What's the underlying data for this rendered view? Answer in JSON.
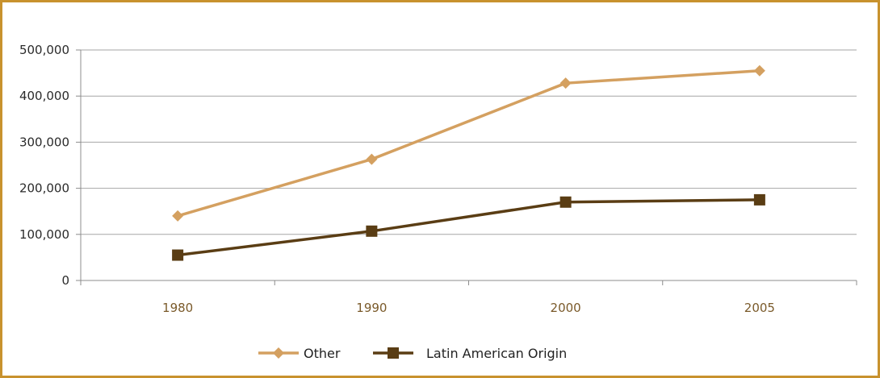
{
  "chart_data": {
    "type": "line",
    "title": "",
    "xlabel": "",
    "ylabel": "",
    "categories": [
      "1980",
      "1990",
      "2000",
      "2005"
    ],
    "y_tick_labels": [
      "0",
      "100,000",
      "200,000",
      "300,000",
      "400,000",
      "500,000"
    ],
    "y_ticks": [
      0,
      100000,
      200000,
      300000,
      400000,
      500000
    ],
    "ylim": [
      0,
      500000
    ],
    "grid": true,
    "legend_position": "bottom",
    "series": [
      {
        "name": "Other",
        "values": [
          140000,
          263000,
          428000,
          455000
        ],
        "color": "#d4a060",
        "marker": "diamond"
      },
      {
        "name": "Latin American Origin",
        "values": [
          55000,
          107000,
          170000,
          175000
        ],
        "color": "#5a3d14",
        "marker": "square"
      }
    ]
  },
  "colors": {
    "frame_border": "#c8922e",
    "grid": "#a6a6a6",
    "axis": "#8c8c8c"
  }
}
